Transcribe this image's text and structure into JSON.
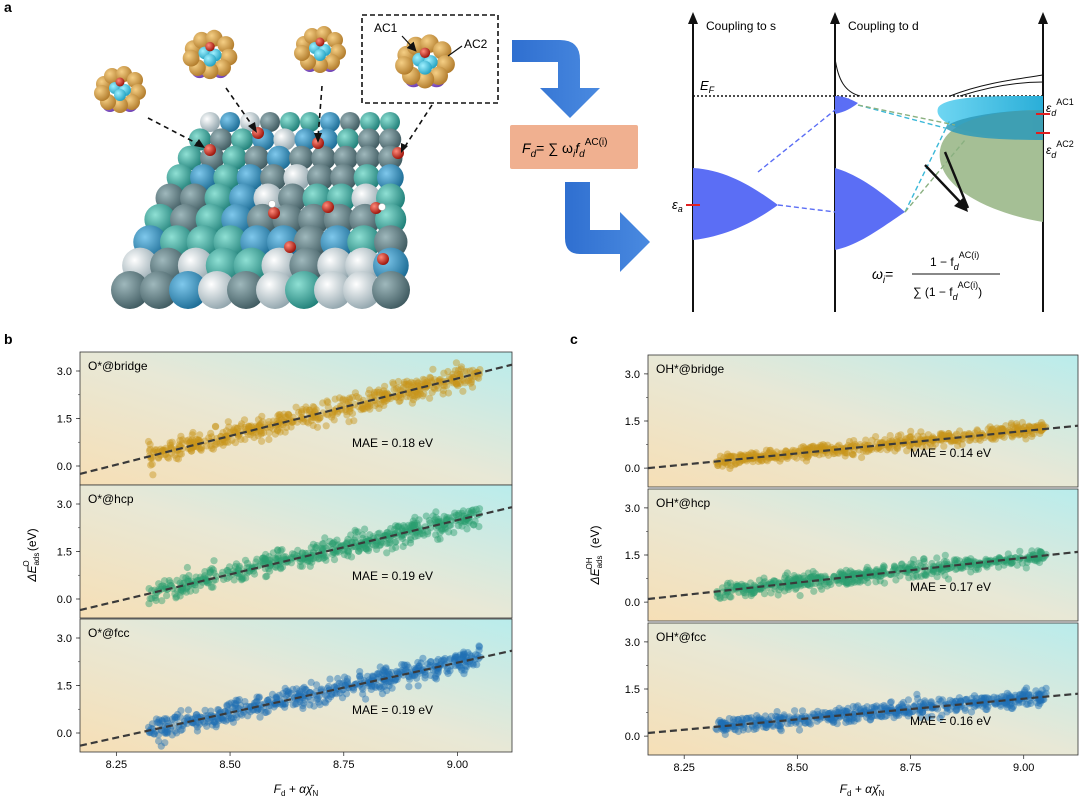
{
  "panel_labels": {
    "a": "a",
    "b": "b",
    "c": "c"
  },
  "panel_a": {
    "ac1": "AC1",
    "ac2": "AC2",
    "equation_lhs": "F",
    "equation_lhs_sub": "d",
    "equation_rhs": "= ∑ ω",
    "equation_rhs_sub": "i",
    "equation_f": "f",
    "equation_f_sub": "d",
    "equation_f_sup": "AC(i)",
    "coupling_s": "Coupling to s",
    "coupling_d": "Coupling to d",
    "ef": "E",
    "ef_sub": "F",
    "eps_a": "ε",
    "eps_a_sub": "a",
    "eps_ac1": "ε",
    "eps_ac1_sub": "d",
    "eps_ac1_sup": "AC1",
    "eps_ac2": "ε",
    "eps_ac2_sub": "d",
    "eps_ac2_sup": "AC2",
    "omega": "ω",
    "omega_sub": "i",
    "omega_eq": "=",
    "omega_num": "1 − f",
    "omega_num_sub": "d",
    "omega_num_sup": "AC(i)",
    "omega_den": "∑ (1 − f",
    "omega_den_sub": "d",
    "omega_den_sup": "AC(i)",
    "omega_den_close": ")",
    "colors": {
      "arrow": "#4472c4",
      "box": "#f0b090",
      "peak": "#5b6ef5"
    }
  },
  "chart_data": [
    {
      "type": "scatter",
      "panel": "b",
      "label": "O*@bridge",
      "mae": "MAE = 0.18 eV",
      "color": "#c8941a",
      "xlim": [
        8.17,
        9.12
      ],
      "ylim": [
        -0.6,
        3.6
      ],
      "fit": {
        "x": [
          8.17,
          9.12
        ],
        "y": [
          -0.25,
          3.2
        ]
      },
      "yticks": [
        "0.0",
        "1.5",
        "3.0"
      ],
      "x_range": [
        8.32,
        9.05
      ],
      "y_spread": 0.35
    },
    {
      "type": "scatter",
      "panel": "b",
      "label": "O*@hcp",
      "mae": "MAE = 0.19 eV",
      "color": "#2a9d6f",
      "xlim": [
        8.17,
        9.12
      ],
      "ylim": [
        -0.6,
        3.6
      ],
      "fit": {
        "x": [
          8.17,
          9.12
        ],
        "y": [
          -0.35,
          2.9
        ]
      },
      "yticks": [
        "0.0",
        "1.5",
        "3.0"
      ],
      "x_range": [
        8.32,
        9.05
      ],
      "y_spread": 0.35
    },
    {
      "type": "scatter",
      "panel": "b",
      "label": "O*@fcc",
      "mae": "MAE = 0.19 eV",
      "color": "#1f6fb4",
      "xlim": [
        8.17,
        9.12
      ],
      "ylim": [
        -0.6,
        3.6
      ],
      "fit": {
        "x": [
          8.17,
          9.12
        ],
        "y": [
          -0.4,
          2.6
        ]
      },
      "yticks": [
        "0.0",
        "1.5",
        "3.0"
      ],
      "x_range": [
        8.32,
        9.05
      ],
      "y_spread": 0.35
    },
    {
      "type": "scatter",
      "panel": "c",
      "label": "OH*@bridge",
      "mae": "MAE = 0.14 eV",
      "color": "#c8941a",
      "xlim": [
        8.17,
        9.12
      ],
      "ylim": [
        -0.6,
        3.6
      ],
      "fit": {
        "x": [
          8.17,
          9.12
        ],
        "y": [
          0.0,
          1.35
        ]
      },
      "yticks": [
        "0.0",
        "1.5",
        "3.0"
      ],
      "x_range": [
        8.32,
        9.05
      ],
      "y_spread": 0.22
    },
    {
      "type": "scatter",
      "panel": "c",
      "label": "OH*@hcp",
      "mae": "MAE = 0.17 eV",
      "color": "#2a9d6f",
      "xlim": [
        8.17,
        9.12
      ],
      "ylim": [
        -0.6,
        3.6
      ],
      "fit": {
        "x": [
          8.17,
          9.12
        ],
        "y": [
          0.1,
          1.6
        ]
      },
      "yticks": [
        "0.0",
        "1.5",
        "3.0"
      ],
      "x_range": [
        8.32,
        9.05
      ],
      "y_spread": 0.25
    },
    {
      "type": "scatter",
      "panel": "c",
      "label": "OH*@fcc",
      "mae": "MAE = 0.16 eV",
      "color": "#1f6fb4",
      "xlim": [
        8.17,
        9.12
      ],
      "ylim": [
        -0.6,
        3.6
      ],
      "fit": {
        "x": [
          8.17,
          9.12
        ],
        "y": [
          0.1,
          1.35
        ]
      },
      "yticks": [
        "0.0",
        "1.5",
        "3.0"
      ],
      "x_range": [
        8.32,
        9.05
      ],
      "y_spread": 0.25
    }
  ],
  "axes": {
    "b_ylabel": "ΔE",
    "b_ylabel_sub": "ads",
    "b_ylabel_sup": "O",
    "b_ylabel_unit": " (eV)",
    "c_ylabel": "ΔE",
    "c_ylabel_sub": "ads",
    "c_ylabel_sup": "OH",
    "c_ylabel_unit": " (eV)",
    "xlabel_main": "F",
    "xlabel_sub": "d",
    "xlabel_rest": " + αχ̄",
    "xlabel_rest_sub": "N",
    "xticks": [
      "8.25",
      "8.50",
      "8.75",
      "9.00"
    ]
  }
}
